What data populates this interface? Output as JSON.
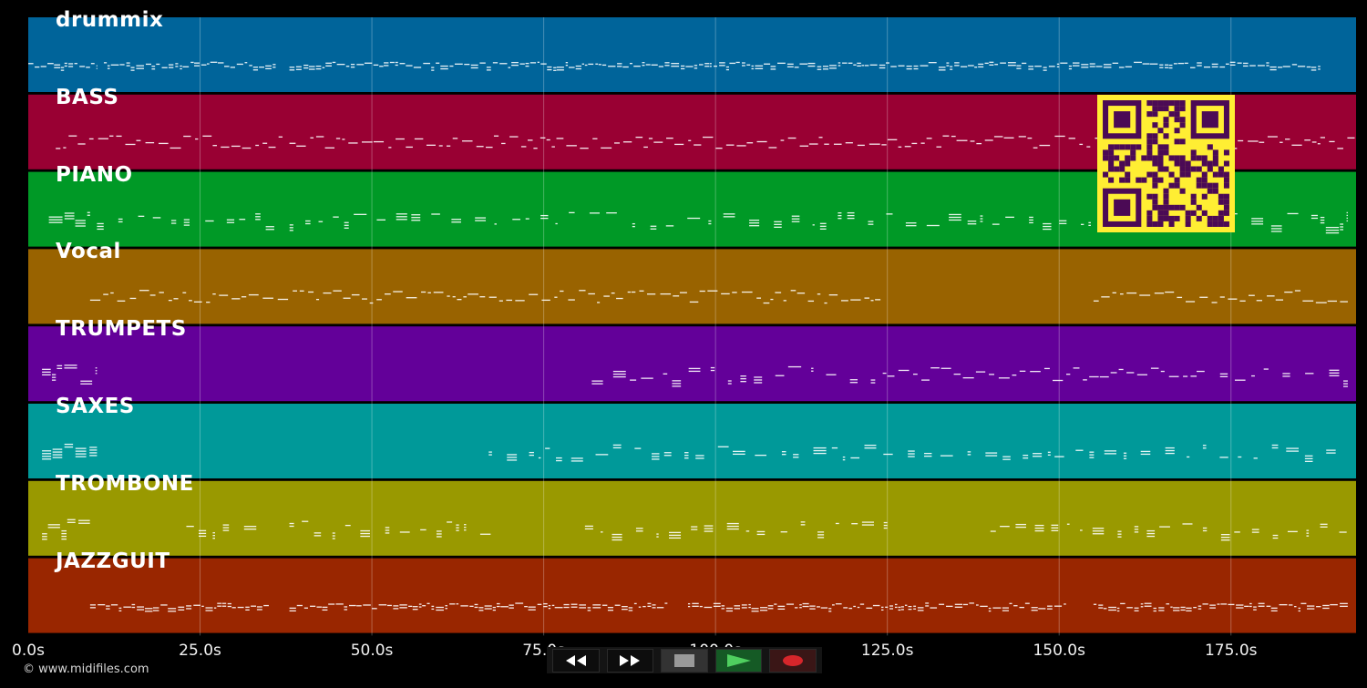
{
  "tracks": [
    {
      "name": "drummix",
      "color": "#00649a",
      "notes": [
        [
          0,
          10,
          "dense"
        ],
        [
          11,
          36,
          "dense"
        ],
        [
          38,
          188,
          "dense"
        ]
      ]
    },
    {
      "name": "BASS",
      "color": "#990033",
      "notes": [
        [
          4,
          37,
          "line"
        ],
        [
          38,
          188,
          "line"
        ],
        [
          188,
          193,
          "line"
        ]
      ]
    },
    {
      "name": "PIANO",
      "color": "#009926",
      "notes": [
        [
          3,
          9,
          "block"
        ],
        [
          10,
          188,
          "sparse"
        ],
        [
          188,
          192,
          "block"
        ]
      ]
    },
    {
      "name": "Vocal",
      "color": "#996300",
      "notes": [
        [
          9,
          124,
          "line"
        ],
        [
          155,
          192,
          "line"
        ]
      ]
    },
    {
      "name": "TRUMPETS",
      "color": "#630099",
      "notes": [
        [
          2,
          10,
          "block"
        ],
        [
          82,
          125,
          "sparse"
        ],
        [
          125,
          170,
          "line"
        ],
        [
          170,
          192,
          "sparse"
        ]
      ]
    },
    {
      "name": "SAXES",
      "color": "#009999",
      "notes": [
        [
          2,
          10,
          "block"
        ],
        [
          67,
          192,
          "sparse"
        ]
      ]
    },
    {
      "name": "TROMBONE",
      "color": "#999900",
      "notes": [
        [
          2,
          9,
          "block"
        ],
        [
          23,
          35,
          "sparse"
        ],
        [
          38,
          68,
          "sparse"
        ],
        [
          81,
          125,
          "sparse"
        ],
        [
          140,
          192,
          "sparse"
        ]
      ]
    },
    {
      "name": "JAZZGUIT",
      "color": "#992600",
      "notes": [
        [
          9,
          35,
          "dense"
        ],
        [
          38,
          93,
          "dense"
        ],
        [
          96,
          151,
          "dense"
        ],
        [
          155,
          192,
          "dense"
        ]
      ]
    }
  ],
  "axis": {
    "unit": "s",
    "max": 193.2,
    "ticks": [
      "0.0s",
      "25.0s",
      "50.0s",
      "75.0s",
      "100.0s",
      "125.0s",
      "150.0s",
      "175.0s"
    ],
    "tick_values": [
      0,
      25,
      50,
      75,
      100,
      125,
      150,
      175
    ]
  },
  "copyright": "© www.midifiles.com",
  "transport": {
    "rewind_icon": "rewind-icon",
    "forward_icon": "fast-forward-icon",
    "stop_icon": "stop-icon",
    "play_icon": "play-icon",
    "record_icon": "record-icon"
  },
  "qr": {
    "color_bg": "#ffee33",
    "color_fg": "#4b0a55"
  }
}
